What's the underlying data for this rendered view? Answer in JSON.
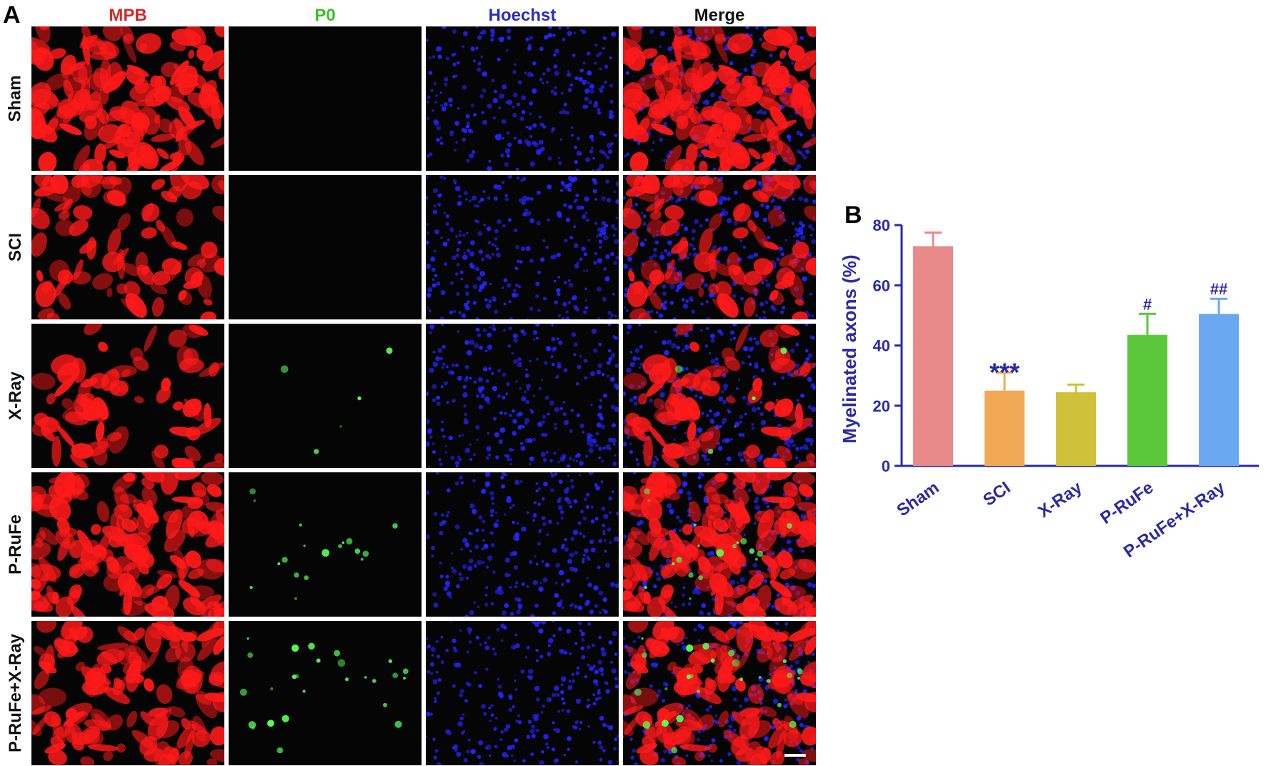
{
  "panel_a": {
    "letter": "A",
    "columns": [
      {
        "label": "MPB",
        "color": "#d42a2a"
      },
      {
        "label": "P0",
        "color": "#3fbf2a"
      },
      {
        "label": "Hoechst",
        "color": "#2b2bc4"
      },
      {
        "label": "Merge",
        "color": "#111111"
      }
    ],
    "rows": [
      "Sham",
      "SCI",
      "X-Ray",
      "P-RuFe",
      "P-RuFe+X-Ray"
    ],
    "stain_colors": {
      "mpb": "#ff1a1a",
      "p0": "#55ff55",
      "hoechst": "#2424ff",
      "background": "#050505"
    }
  },
  "panel_b": {
    "letter": "B"
  },
  "chart_data": {
    "type": "bar",
    "categories": [
      "Sham",
      "SCI",
      "X-Ray",
      "P-RuFe",
      "P-RuFe+X-Ray"
    ],
    "values": [
      73,
      25,
      24.5,
      43.5,
      50.5
    ],
    "errors": [
      4.5,
      6,
      2.5,
      7,
      5
    ],
    "annotations": [
      "",
      "***",
      "",
      "#",
      "##"
    ],
    "bar_colors": [
      "#e88a8a",
      "#f2a955",
      "#cfc23a",
      "#5ac83a",
      "#6aa8f2"
    ],
    "ylabel": "Myelinated axons (%)",
    "ylim": [
      0,
      80
    ],
    "yticks": [
      0,
      20,
      40,
      60,
      80
    ],
    "axis_color": "#2a2aa8",
    "grid": false
  }
}
